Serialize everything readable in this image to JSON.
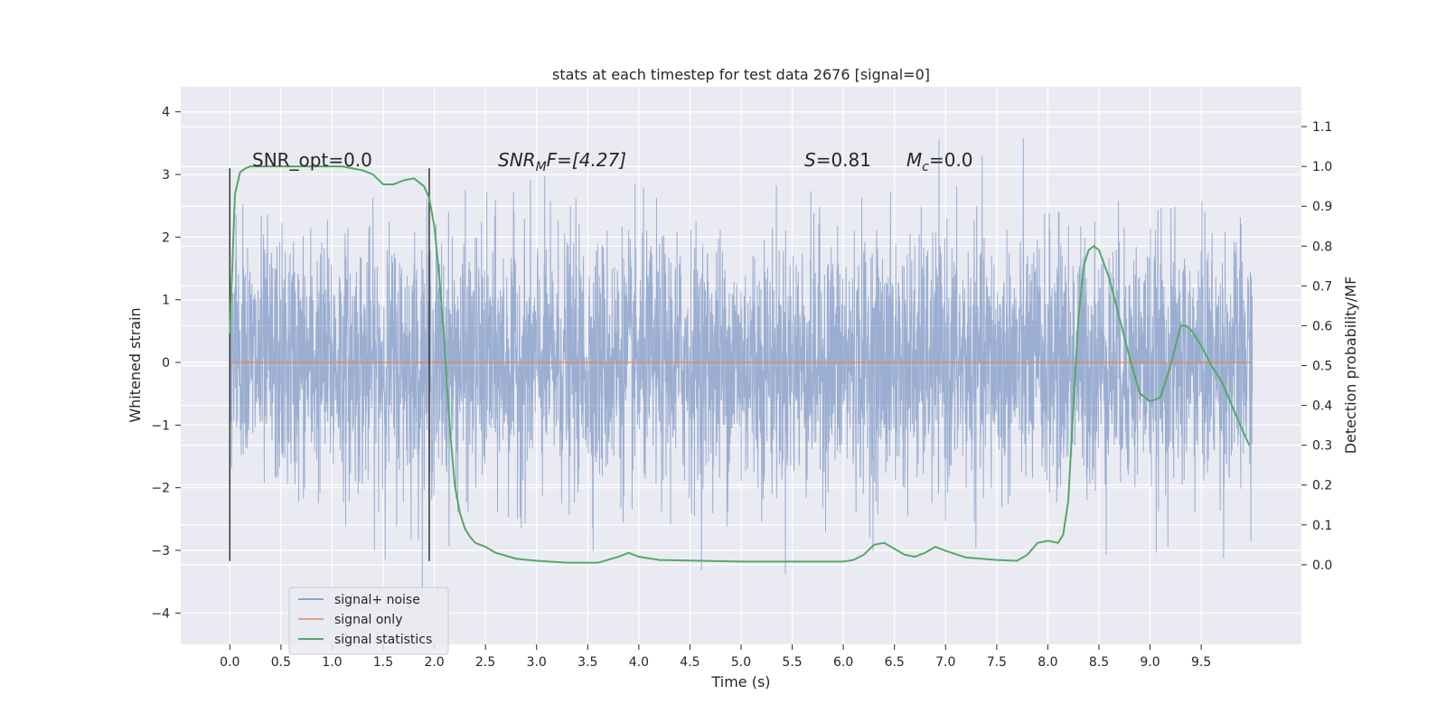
{
  "chart_data": {
    "type": "line",
    "title": "stats at each timestep for test data 2676 [signal=0]",
    "xlabel": "Time (s)",
    "ylabel": "Whitened strain",
    "ylabel_right": "Detection probability/MF",
    "xlim": [
      -0.48,
      10.48
    ],
    "ylim": [
      -4.5,
      4.4
    ],
    "ylim_right": [
      -0.2,
      1.2
    ],
    "x_ticks": [
      "0.0",
      "0.5",
      "1.0",
      "1.5",
      "2.0",
      "2.5",
      "3.0",
      "3.5",
      "4.0",
      "4.5",
      "5.0",
      "5.5",
      "6.0",
      "6.5",
      "7.0",
      "7.5",
      "8.0",
      "8.5",
      "9.0",
      "9.5"
    ],
    "y_ticks": [
      "4",
      "3",
      "2",
      "1",
      "0",
      "−1",
      "−2",
      "−3",
      "−4"
    ],
    "y_right_ticks": [
      "1.1",
      "1.0",
      "0.9",
      "0.8",
      "0.7",
      "0.6",
      "0.5",
      "0.4",
      "0.3",
      "0.2",
      "0.1",
      "0.0"
    ],
    "grid": true,
    "legend_position": "lower-left",
    "colors": {
      "noise": "#4c72b0",
      "signal": "#dd8452",
      "stats": "#55a868",
      "plot_bg": "#eaeaf2",
      "vline": "#333333"
    },
    "annotations": {
      "snr_opt": "SNR_opt=0.0",
      "snr_mf_base": "SNR",
      "snr_mf_sub": "M",
      "snr_mf_rest": "F=[4.27]",
      "s_var": "S",
      "s_val": "=0.81",
      "mc_var": "M",
      "mc_sub": "c",
      "mc_val": "=0.0"
    },
    "vlines": [
      0.0,
      1.95
    ],
    "series": [
      {
        "name": "signal+ noise",
        "x_range": [
          0.0,
          10.0
        ],
        "std": 1.0,
        "max": 3.95,
        "min": -4.05,
        "description_values": "white noise envelope approx ±1.2 with spikes to ±3.5"
      },
      {
        "name": "signal only",
        "x": [
          0.0,
          10.0
        ],
        "y": [
          0.0,
          0.0
        ]
      },
      {
        "name": "signal statistics",
        "x": [
          0.0,
          0.05,
          0.1,
          0.15,
          0.2,
          0.3,
          0.5,
          0.7,
          0.9,
          1.1,
          1.3,
          1.4,
          1.5,
          1.6,
          1.7,
          1.8,
          1.9,
          1.95,
          2.0,
          2.05,
          2.1,
          2.15,
          2.2,
          2.25,
          2.3,
          2.35,
          2.4,
          2.5,
          2.6,
          2.8,
          3.0,
          3.3,
          3.6,
          3.8,
          3.9,
          4.0,
          4.2,
          4.6,
          5.0,
          5.5,
          6.0,
          6.1,
          6.2,
          6.3,
          6.4,
          6.5,
          6.6,
          6.7,
          6.8,
          6.9,
          7.0,
          7.2,
          7.5,
          7.7,
          7.8,
          7.9,
          8.0,
          8.1,
          8.15,
          8.2,
          8.25,
          8.3,
          8.35,
          8.4,
          8.45,
          8.5,
          8.6,
          8.7,
          8.8,
          8.9,
          9.0,
          9.1,
          9.2,
          9.25,
          9.3,
          9.35,
          9.4,
          9.5,
          9.6,
          9.7,
          9.8,
          9.9,
          9.97
        ],
        "y": [
          0.58,
          0.93,
          0.985,
          0.995,
          1.0,
          1.0,
          1.0,
          1.0,
          1.0,
          1.0,
          0.99,
          0.98,
          0.955,
          0.955,
          0.965,
          0.97,
          0.95,
          0.92,
          0.85,
          0.72,
          0.55,
          0.35,
          0.2,
          0.13,
          0.09,
          0.07,
          0.055,
          0.045,
          0.03,
          0.015,
          0.01,
          0.005,
          0.005,
          0.02,
          0.03,
          0.02,
          0.012,
          0.01,
          0.008,
          0.008,
          0.008,
          0.012,
          0.025,
          0.05,
          0.055,
          0.04,
          0.025,
          0.02,
          0.03,
          0.045,
          0.035,
          0.018,
          0.012,
          0.01,
          0.025,
          0.055,
          0.06,
          0.055,
          0.075,
          0.16,
          0.4,
          0.62,
          0.75,
          0.79,
          0.8,
          0.79,
          0.72,
          0.62,
          0.52,
          0.43,
          0.41,
          0.42,
          0.5,
          0.55,
          0.6,
          0.6,
          0.59,
          0.55,
          0.5,
          0.46,
          0.4,
          0.34,
          0.3
        ]
      }
    ]
  }
}
